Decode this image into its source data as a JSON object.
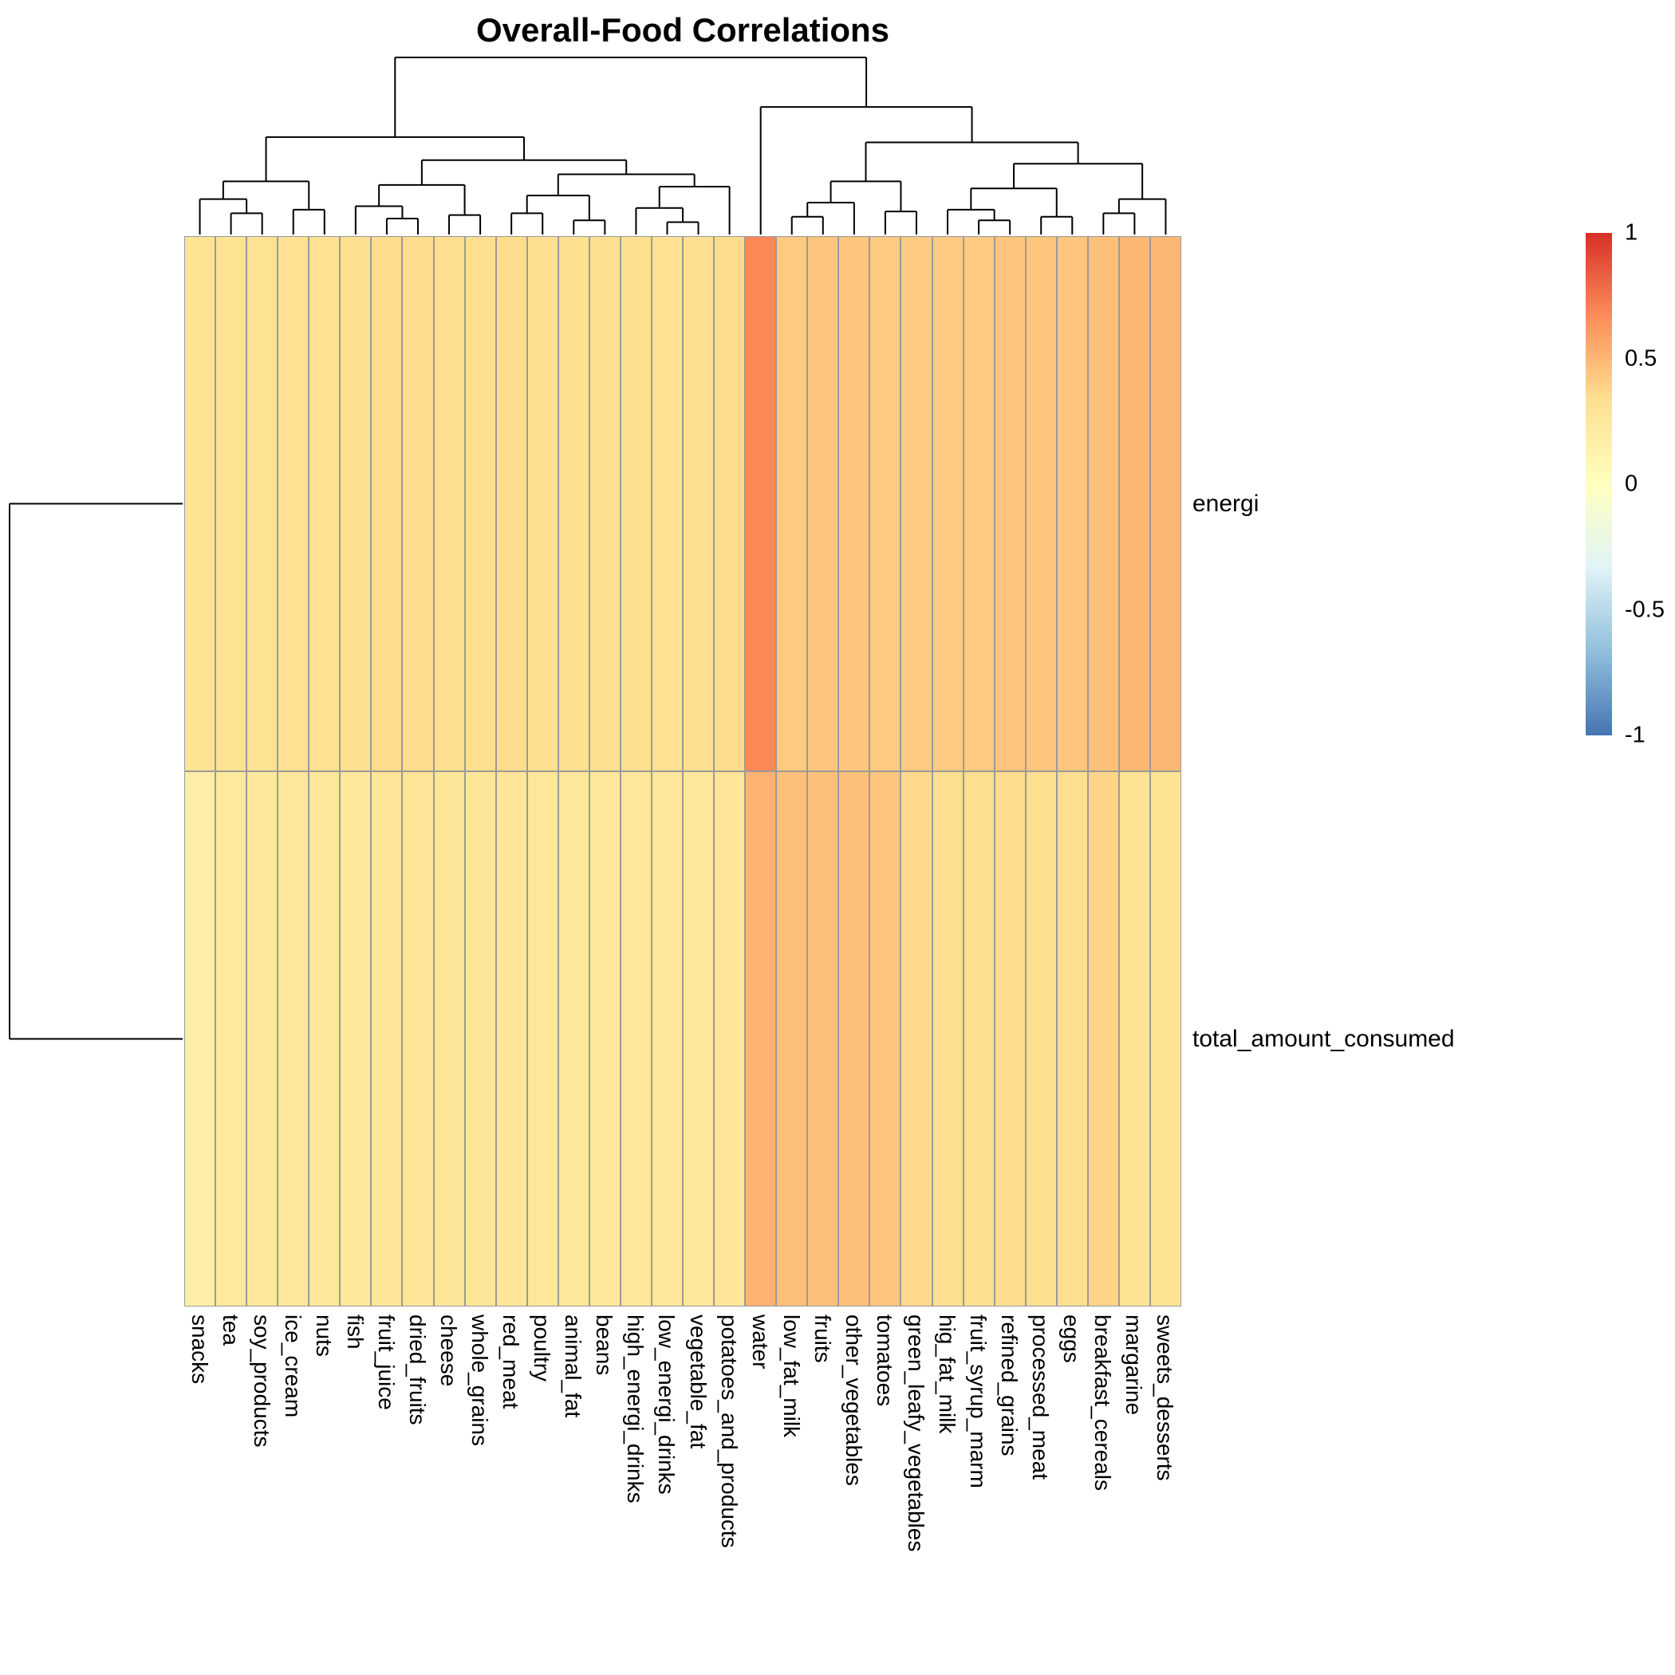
{
  "title": "Overall-Food Correlations",
  "chart_data": {
    "type": "heatmap",
    "title": "Overall-Food Correlations",
    "columns": [
      "snacks",
      "tea",
      "soy_products",
      "ice_cream",
      "nuts",
      "fish",
      "fruit_juice",
      "dried_fruits",
      "cheese",
      "whole_grains",
      "red_meat",
      "poultry",
      "animal_fat",
      "beans",
      "high_energi_drinks",
      "low_energi_drinks",
      "vegetable_fat",
      "potatoes_and_products",
      "water",
      "low_fat_milk",
      "fruits",
      "other_vegetables",
      "tomatoes",
      "green_leafy_vegetables",
      "hig_fat_milk",
      "fruit_syrup_marm",
      "refined_grains",
      "processed_meat",
      "eggs",
      "breakfast_cereals",
      "margarine",
      "sweets_desserts"
    ],
    "rows": [
      "energi",
      "total_amount_consumed"
    ],
    "series": [
      {
        "name": "energi",
        "values": [
          0.3,
          0.3,
          0.31,
          0.32,
          0.32,
          0.33,
          0.35,
          0.35,
          0.34,
          0.34,
          0.35,
          0.33,
          0.33,
          0.33,
          0.33,
          0.32,
          0.33,
          0.35,
          0.68,
          0.42,
          0.44,
          0.44,
          0.42,
          0.42,
          0.42,
          0.42,
          0.44,
          0.44,
          0.44,
          0.46,
          0.5,
          0.5
        ]
      },
      {
        "name": "total_amount_consumed",
        "values": [
          0.18,
          0.24,
          0.25,
          0.26,
          0.26,
          0.25,
          0.28,
          0.28,
          0.27,
          0.27,
          0.27,
          0.26,
          0.26,
          0.26,
          0.26,
          0.26,
          0.26,
          0.28,
          0.52,
          0.46,
          0.46,
          0.46,
          0.44,
          0.36,
          0.34,
          0.34,
          0.35,
          0.34,
          0.34,
          0.38,
          0.3,
          0.3
        ]
      }
    ],
    "colorscale": {
      "min": -1,
      "max": 1,
      "palette": [
        "#4575B4",
        "#91BFDB",
        "#E0F3F8",
        "#FFFFBF",
        "#FEE090",
        "#FC8D59",
        "#D73027"
      ]
    },
    "legend_position": "right",
    "legend_ticks": [
      {
        "value": 1,
        "label": "1"
      },
      {
        "value": 0.5,
        "label": "0.5"
      },
      {
        "value": 0,
        "label": "0"
      },
      {
        "value": -0.5,
        "label": "-0.5"
      },
      {
        "value": -1,
        "label": "-1"
      }
    ],
    "grid": true,
    "column_dendrogram": {
      "h": 1.0,
      "c": [
        {
          "h": 0.55,
          "c": [
            {
              "h": 0.3,
              "c": [
                {
                  "h": 0.2,
                  "c": [
                    0,
                    {
                      "h": 0.12,
                      "c": [
                        1,
                        2
                      ]
                    }
                  ]
                },
                {
                  "h": 0.14,
                  "c": [
                    3,
                    4
                  ]
                }
              ]
            },
            {
              "h": 0.42,
              "c": [
                {
                  "h": 0.28,
                  "c": [
                    {
                      "h": 0.16,
                      "c": [
                        5,
                        {
                          "h": 0.09,
                          "c": [
                            6,
                            7
                          ]
                        }
                      ]
                    },
                    {
                      "h": 0.11,
                      "c": [
                        8,
                        9
                      ]
                    }
                  ]
                },
                {
                  "h": 0.34,
                  "c": [
                    {
                      "h": 0.22,
                      "c": [
                        {
                          "h": 0.12,
                          "c": [
                            10,
                            11
                          ]
                        },
                        {
                          "h": 0.08,
                          "c": [
                            12,
                            13
                          ]
                        }
                      ]
                    },
                    {
                      "h": 0.27,
                      "c": [
                        {
                          "h": 0.15,
                          "c": [
                            14,
                            {
                              "h": 0.07,
                              "c": [
                                15,
                                16
                              ]
                            }
                          ]
                        },
                        17
                      ]
                    }
                  ]
                }
              ]
            }
          ]
        },
        {
          "h": 0.72,
          "c": [
            18,
            {
              "h": 0.52,
              "c": [
                {
                  "h": 0.3,
                  "c": [
                    {
                      "h": 0.18,
                      "c": [
                        {
                          "h": 0.1,
                          "c": [
                            19,
                            20
                          ]
                        },
                        21
                      ]
                    },
                    {
                      "h": 0.13,
                      "c": [
                        22,
                        23
                      ]
                    }
                  ]
                },
                {
                  "h": 0.4,
                  "c": [
                    {
                      "h": 0.26,
                      "c": [
                        {
                          "h": 0.14,
                          "c": [
                            24,
                            {
                              "h": 0.08,
                              "c": [
                                25,
                                26
                              ]
                            }
                          ]
                        },
                        {
                          "h": 0.1,
                          "c": [
                            27,
                            28
                          ]
                        }
                      ]
                    },
                    {
                      "h": 0.2,
                      "c": [
                        {
                          "h": 0.12,
                          "c": [
                            29,
                            30
                          ]
                        },
                        31
                      ]
                    }
                  ]
                }
              ]
            }
          ]
        }
      ]
    },
    "row_dendrogram": {
      "h": 1.0,
      "c": [
        0,
        1
      ]
    }
  }
}
